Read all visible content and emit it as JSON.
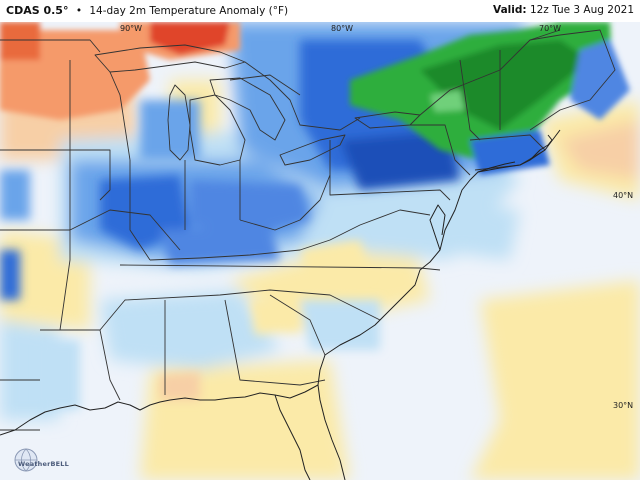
{
  "header": {
    "model": "CDAS 0.5°",
    "separator": "•",
    "product": "14-day 2m Temperature Anomaly (°F)",
    "valid_label": "Valid:",
    "valid_time": "12z Tue 3 Aug 2021"
  },
  "map_labels": {
    "lon_90w": "90°W",
    "lon_80w": "80°W",
    "lon_70w": "70°W",
    "lat_40n": "40°N",
    "lat_30n": "30°N"
  },
  "logo": {
    "text": "WeatherBELL"
  },
  "colors": {
    "strong_warm": "#e0452a",
    "warm": "#f59a6b",
    "mild_warm": "#f7cfa6",
    "slight_warm": "#fbeaa8",
    "neutral": "#eef3fa",
    "slight_cool": "#bfe0f5",
    "cool": "#6aa4ea",
    "strong_cool": "#2f6cd8",
    "very_strong_cool": "#1f4fb8",
    "cold_green": "#2fae3c",
    "deep_green": "#1e8a2a",
    "light_green": "#6fd07a"
  }
}
